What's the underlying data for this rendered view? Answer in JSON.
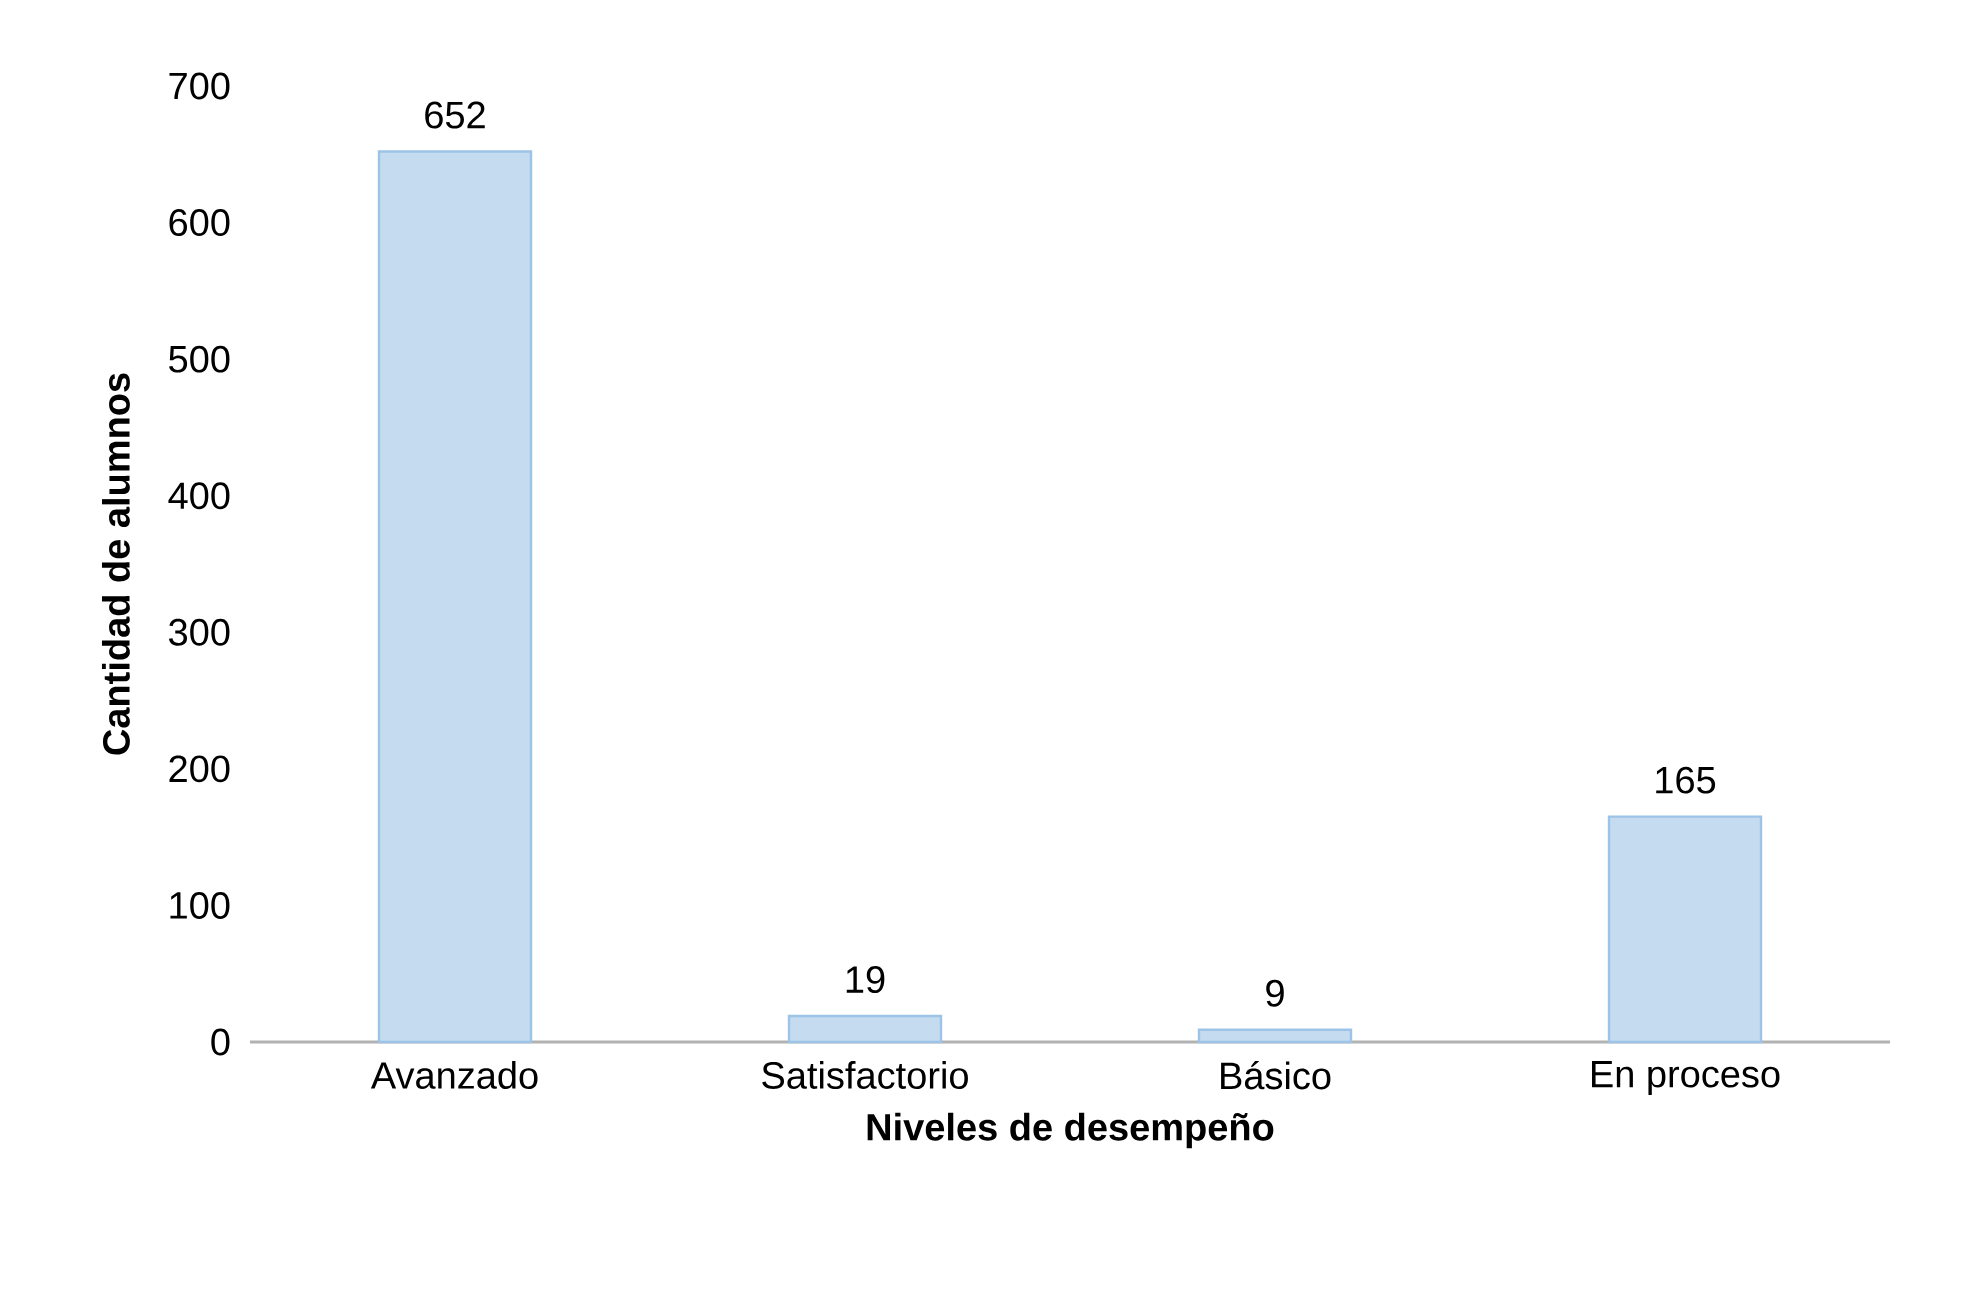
{
  "chart_data": {
    "type": "bar",
    "xlabel": "Niveles de desempeño",
    "ylabel": "Cantidad de alumnos",
    "categories": [
      "Avanzado",
      "Satisfactorio",
      "Básico",
      "En proceso"
    ],
    "values": [
      652,
      19,
      9,
      165
    ],
    "color": "#9dc3e6",
    "ylim": [
      0,
      700
    ],
    "yticks": [
      0,
      100,
      200,
      300,
      400,
      500,
      600,
      700
    ],
    "data_labels": true
  }
}
